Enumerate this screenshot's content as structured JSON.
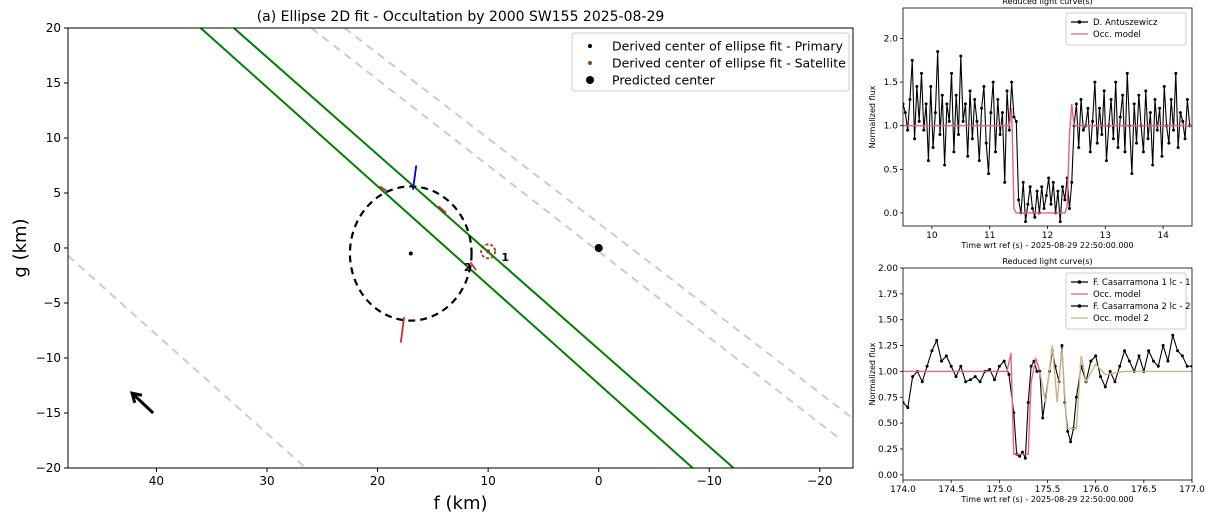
{
  "chart_data": [
    {
      "type": "scatter",
      "title": "(a) Ellipse 2D fit - Occultation by 2000 SW155 2025-08-29",
      "xlabel": "f (km)",
      "ylabel": "g (km)",
      "xlim": [
        48,
        -23
      ],
      "ylim": [
        -20,
        20
      ],
      "xticks": [
        40,
        30,
        20,
        10,
        0,
        -10,
        -20
      ],
      "xtick_labels": [
        "40",
        "30",
        "20",
        "10",
        "0",
        "−10",
        "−20"
      ],
      "yticks": [
        20,
        15,
        10,
        5,
        0,
        -5,
        -10,
        -15,
        -20
      ],
      "ytick_labels": [
        "20",
        "15",
        "10",
        "5",
        "0",
        "−5",
        "−10",
        "−15",
        "−20"
      ],
      "grid": false,
      "legend_position": "upper-right",
      "legend": [
        "Derived center of ellipse fit - Primary",
        "Derived center of ellipse fit - Satellite",
        "Predicted center"
      ],
      "ellipse": {
        "center": [
          17,
          -0.5
        ],
        "semi_axes": [
          5.5,
          6.1
        ],
        "angle_deg": 0
      },
      "primary_center": [
        17,
        -0.5
      ],
      "satellite_center": [
        10,
        -0.3
      ],
      "predicted_center": [
        0,
        0
      ],
      "positive_chords": [
        {
          "f1": 36,
          "g1": 20,
          "f2": -8.5,
          "g2": -20
        },
        {
          "f1": 33,
          "g1": 20,
          "f2": -12.2,
          "g2": -20
        }
      ],
      "body_limits": [
        {
          "f1": 26,
          "g1": 20,
          "f2": -22,
          "g2": -17.5
        },
        {
          "f1": 23,
          "g1": 20,
          "f2": -23,
          "g2": -15.5
        },
        {
          "f1": 48,
          "g1": -0.7,
          "f2": 26.5,
          "g2": -20
        }
      ],
      "chord_segments": [
        {
          "color": "#d62728",
          "f1": 19.8,
          "g1": 5.6,
          "f2": 19.2,
          "g2": 5.2
        },
        {
          "color": "#0000cc",
          "f1": 16.5,
          "g1": 7.5,
          "f2": 16.8,
          "g2": 5.3
        },
        {
          "color": "#d62728",
          "f1": 14.5,
          "g1": 3.8,
          "f2": 13.8,
          "g2": 3.2
        },
        {
          "color": "#d62728",
          "f1": 17.6,
          "g1": -6.3,
          "f2": 17.9,
          "g2": -8.6
        },
        {
          "color": "#d62728",
          "f1": 11.6,
          "g1": -1.3,
          "f2": 11.1,
          "g2": -2.0
        }
      ],
      "annotations": [
        {
          "text": "1",
          "f": 8.8,
          "g": -1.2
        },
        {
          "text": "2",
          "f": 12.2,
          "g": -2.1
        }
      ],
      "direction_arrow": {
        "from": [
          40.3,
          -15
        ],
        "to": [
          42.2,
          -13.2
        ]
      }
    },
    {
      "type": "line",
      "title": "Reduced light curve(s)",
      "xlabel": "Time wrt ref (s)  - 2025-08-29 22:50:00.000",
      "ylabel": "Normalized flux",
      "xlim": [
        9.5,
        14.5
      ],
      "ylim": [
        -0.15,
        2.35
      ],
      "xticks": [
        10,
        11,
        12,
        13,
        14
      ],
      "yticks": [
        0.0,
        0.5,
        1.0,
        1.5,
        2.0
      ],
      "ytick_labels": [
        "0.0",
        "0.5",
        "1.0",
        "1.5",
        "2.0"
      ],
      "legend_position": "upper-right",
      "series": [
        {
          "name": "D. Antuszewicz",
          "color": "#000000",
          "markers": true,
          "x": [
            9.5,
            9.54,
            9.58,
            9.62,
            9.66,
            9.7,
            9.74,
            9.78,
            9.82,
            9.86,
            9.9,
            9.94,
            9.98,
            10.02,
            10.06,
            10.1,
            10.14,
            10.18,
            10.22,
            10.26,
            10.3,
            10.34,
            10.38,
            10.42,
            10.46,
            10.5,
            10.54,
            10.58,
            10.62,
            10.66,
            10.7,
            10.74,
            10.78,
            10.82,
            10.86,
            10.9,
            10.94,
            10.98,
            11.02,
            11.06,
            11.1,
            11.14,
            11.18,
            11.22,
            11.26,
            11.3,
            11.34,
            11.38,
            11.42,
            11.46,
            11.5,
            11.54,
            11.58,
            11.62,
            11.66,
            11.7,
            11.74,
            11.78,
            11.82,
            11.86,
            11.9,
            11.94,
            11.98,
            12.02,
            12.06,
            12.1,
            12.14,
            12.18,
            12.22,
            12.26,
            12.3,
            12.34,
            12.38,
            12.42,
            12.46,
            12.5,
            12.54,
            12.58,
            12.62,
            12.66,
            12.7,
            12.74,
            12.78,
            12.82,
            12.86,
            12.9,
            12.94,
            12.98,
            13.02,
            13.06,
            13.1,
            13.14,
            13.18,
            13.22,
            13.26,
            13.3,
            13.34,
            13.38,
            13.42,
            13.46,
            13.5,
            13.54,
            13.58,
            13.62,
            13.66,
            13.7,
            13.74,
            13.78,
            13.82,
            13.86,
            13.9,
            13.94,
            13.98,
            14.02,
            14.06,
            14.1,
            14.14,
            14.18,
            14.22,
            14.26,
            14.3,
            14.34,
            14.38,
            14.42,
            14.46
          ],
          "y": [
            1.25,
            1.15,
            0.95,
            1.3,
            1.75,
            0.85,
            1.45,
            1.05,
            1.6,
            0.95,
            1.25,
            0.6,
            1.45,
            0.75,
            1.15,
            1.85,
            0.9,
            1.35,
            0.55,
            1.25,
            1.05,
            1.6,
            0.7,
            1.35,
            0.9,
            1.8,
            1.05,
            1.25,
            0.65,
            1.4,
            0.85,
            1.3,
            1.05,
            0.6,
            1.2,
            1.45,
            0.8,
            0.45,
            1.15,
            1.5,
            0.7,
            1.3,
            0.9,
            1.15,
            0.35,
            1.4,
            0.95,
            1.5,
            1.1,
            1.05,
            0.15,
            0.0,
            0.35,
            -0.1,
            0.1,
            0.3,
            0.05,
            -0.05,
            0.25,
            0.0,
            0.3,
            0.05,
            0.2,
            0.4,
            0.1,
            0.35,
            0.0,
            0.25,
            -0.1,
            0.3,
            0.15,
            0.4,
            0.05,
            0.35,
            1.0,
            1.25,
            0.75,
            1.3,
            0.95,
            1.0,
            1.2,
            0.7,
            1.05,
            1.5,
            0.8,
            1.2,
            0.9,
            1.4,
            0.6,
            1.0,
            1.3,
            0.85,
            1.5,
            0.75,
            1.1,
            1.35,
            0.7,
            1.6,
            1.0,
            0.45,
            1.25,
            0.8,
            1.35,
            1.0,
            0.7,
            1.4,
            0.85,
            1.15,
            0.55,
            1.3,
            0.95,
            1.2,
            0.65,
            1.45,
            1.0,
            0.8,
            1.3,
            0.95,
            1.6,
            0.75,
            1.15,
            1.05,
            0.85,
            1.3,
            1.0
          ]
        },
        {
          "name": "Occ. model",
          "color": "#e8608c",
          "markers": false,
          "x": [
            9.5,
            11.34,
            11.38,
            11.42,
            11.46,
            12.3,
            12.34,
            12.38,
            12.42,
            12.46,
            14.5
          ],
          "y": [
            1.0,
            1.0,
            1.2,
            0.05,
            0.0,
            0.0,
            0.08,
            0.9,
            1.25,
            1.0,
            1.0
          ]
        }
      ]
    },
    {
      "type": "line",
      "title": "Reduced light curve(s)",
      "xlabel": "Time wrt ref (s)  - 2025-08-29 22:50:00.000",
      "ylabel": "Normalized flux",
      "xlim": [
        174.0,
        177.0
      ],
      "ylim": [
        -0.05,
        2.0
      ],
      "xticks": [
        174.0,
        174.5,
        175.0,
        175.5,
        176.0,
        176.5,
        177.0
      ],
      "xtick_labels": [
        "174.0",
        "174.5",
        "175.0",
        "175.5",
        "176.0",
        "176.5",
        "177.0"
      ],
      "yticks": [
        0.0,
        0.25,
        0.5,
        0.75,
        1.0,
        1.25,
        1.5,
        1.75,
        2.0
      ],
      "ytick_labels": [
        "0.00",
        "0.25",
        "0.50",
        "0.75",
        "1.00",
        "1.25",
        "1.50",
        "1.75",
        "2.00"
      ],
      "legend_position": "upper-right",
      "series": [
        {
          "name": "F. Casarramona 1 lc - 1",
          "color": "#000000",
          "markers": true,
          "x": [
            174.0,
            174.05,
            174.1,
            174.15,
            174.2,
            174.25,
            174.3,
            174.35,
            174.4,
            174.45,
            174.5,
            174.55,
            174.6,
            174.65,
            174.7,
            174.75,
            174.8,
            174.85,
            174.9,
            174.95,
            175.0,
            175.05,
            175.1,
            175.15,
            175.18,
            175.21,
            175.24,
            175.27,
            175.3,
            175.33,
            175.36,
            175.39
          ],
          "y": [
            0.7,
            0.65,
            0.95,
            1.0,
            0.9,
            1.05,
            1.2,
            1.3,
            1.1,
            1.15,
            1.05,
            0.95,
            1.05,
            0.9,
            0.92,
            0.95,
            0.9,
            1.0,
            1.02,
            0.92,
            1.05,
            1.1,
            0.97,
            0.6,
            0.2,
            0.18,
            0.22,
            0.16,
            0.7,
            1.05,
            1.1,
            1.0
          ]
        },
        {
          "name": "Occ. model",
          "color": "#e8608c",
          "markers": false,
          "x": [
            174.0,
            175.08,
            175.12,
            175.15,
            175.3,
            175.33,
            175.38,
            175.42
          ],
          "y": [
            1.0,
            1.0,
            1.18,
            0.2,
            0.2,
            0.9,
            1.12,
            1.0
          ]
        },
        {
          "name": "F. Casarramona 2 lc - 2",
          "color": "#000000",
          "markers": true,
          "x": [
            175.42,
            175.45,
            175.48,
            175.52,
            175.55,
            175.58,
            175.62,
            175.65,
            175.68,
            175.71,
            175.74,
            175.77,
            175.8,
            175.85,
            175.9,
            175.95,
            176.0,
            176.05,
            176.1,
            176.15,
            176.2,
            176.25,
            176.3,
            176.35,
            176.4,
            176.45,
            176.5,
            176.55,
            176.6,
            176.65,
            176.7,
            176.75,
            176.8,
            176.85,
            176.9,
            176.95,
            177.0
          ],
          "y": [
            1.0,
            0.55,
            0.75,
            1.0,
            1.2,
            1.05,
            0.9,
            1.25,
            0.7,
            0.42,
            0.32,
            0.45,
            0.75,
            1.05,
            0.9,
            1.1,
            1.15,
            0.95,
            0.85,
            1.0,
            0.9,
            1.05,
            1.2,
            1.1,
            1.0,
            1.15,
            1.0,
            1.2,
            1.1,
            1.05,
            1.25,
            1.1,
            1.35,
            1.2,
            1.15,
            1.05,
            1.05
          ]
        },
        {
          "name": "Occ. model 2",
          "color": "#c8b48a",
          "markers": false,
          "x": [
            175.42,
            175.48,
            175.55,
            175.6,
            175.65,
            175.7,
            175.8,
            175.85,
            175.9,
            176.0,
            176.1,
            176.3,
            177.0
          ],
          "y": [
            1.0,
            0.7,
            1.25,
            0.7,
            1.22,
            0.45,
            0.45,
            1.15,
            0.9,
            1.07,
            0.97,
            1.0,
            1.0
          ]
        }
      ]
    }
  ]
}
